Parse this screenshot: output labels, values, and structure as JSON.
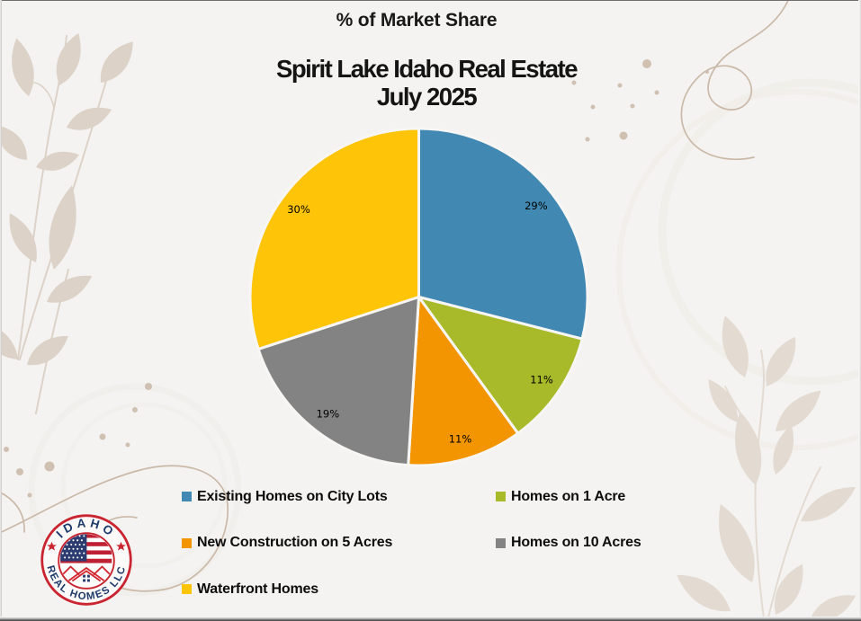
{
  "page": {
    "background": "#f4f3f1",
    "top_label": "% of Market Share",
    "heading_line1": "Spirit Lake Idaho Real Estate",
    "heading_line2": "July 2025"
  },
  "chart_data": {
    "type": "pie",
    "title": "% of Market Share",
    "subtitle": "Spirit Lake Idaho Real Estate July 2025",
    "start_angle_deg": 0,
    "direction": "clockwise",
    "legend_position": "bottom",
    "data_labels": "percent",
    "slices": [
      {
        "label": "Existing Homes on City Lots",
        "value": 29,
        "percent_label": "29%",
        "color": "#4189b2"
      },
      {
        "label": "Homes on 1 Acre",
        "value": 11,
        "percent_label": "11%",
        "color": "#a8ba29"
      },
      {
        "label": "New Construction on 5 Acres",
        "value": 11,
        "percent_label": "11%",
        "color": "#f39501"
      },
      {
        "label": "Homes on 10 Acres",
        "value": 19,
        "percent_label": "19%",
        "color": "#838383"
      },
      {
        "label": "Waterfront Homes",
        "value": 30,
        "percent_label": "30%",
        "color": "#fec408"
      }
    ]
  },
  "logo": {
    "arc_top_text": "IDAHO",
    "arc_bottom_text": "REAL HOMES LLC",
    "ring_color": "#c92430",
    "text_color": "#1d3a6b",
    "flag_red": "#bf2033",
    "flag_blue": "#2c3c70"
  }
}
